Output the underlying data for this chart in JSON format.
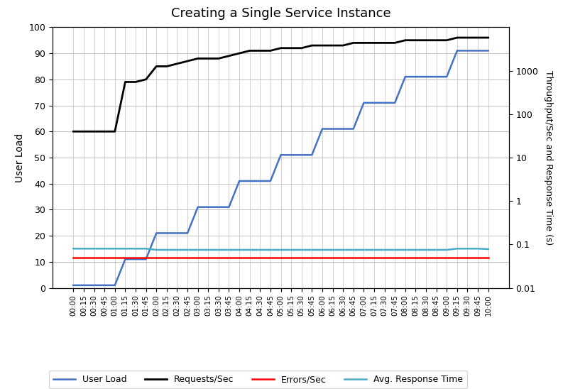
{
  "title": "Creating a Single Service Instance",
  "ylabel_left": "User Load",
  "ylabel_right": "Throughput/Sec and Response Time (s)",
  "ylim_left": [
    0,
    100
  ],
  "ylim_right": [
    0.01,
    10000
  ],
  "time_labels": [
    "00:00",
    "00:15",
    "00:30",
    "00:45",
    "01:00",
    "01:15",
    "01:30",
    "01:45",
    "02:00",
    "02:15",
    "02:30",
    "02:45",
    "03:00",
    "03:15",
    "03:30",
    "03:45",
    "04:00",
    "04:15",
    "04:30",
    "04:45",
    "05:00",
    "05:15",
    "05:30",
    "05:45",
    "06:00",
    "06:15",
    "06:30",
    "06:45",
    "07:00",
    "07:15",
    "07:30",
    "07:45",
    "08:00",
    "08:15",
    "08:30",
    "08:45",
    "09:00",
    "09:15",
    "09:30",
    "09:45",
    "10:00"
  ],
  "user_load": [
    1,
    1,
    1,
    1,
    1,
    11,
    11,
    11,
    21,
    21,
    21,
    21,
    31,
    31,
    31,
    31,
    41,
    41,
    41,
    41,
    51,
    51,
    51,
    51,
    61,
    61,
    61,
    61,
    71,
    71,
    71,
    71,
    81,
    81,
    81,
    81,
    81,
    91,
    91,
    91,
    91
  ],
  "requests_per_sec": [
    60,
    60,
    60,
    60,
    60,
    79,
    79,
    80,
    85,
    85,
    86,
    87,
    88,
    88,
    88,
    89,
    90,
    91,
    91,
    91,
    92,
    92,
    92,
    93,
    93,
    93,
    93,
    94,
    94,
    94,
    94,
    94,
    95,
    95,
    95,
    95,
    95,
    96,
    96,
    96,
    96
  ],
  "errors_per_sec": [
    0.05,
    0.05,
    0.05,
    0.05,
    0.05,
    0.05,
    0.05,
    0.05,
    0.05,
    0.05,
    0.05,
    0.05,
    0.05,
    0.05,
    0.05,
    0.05,
    0.05,
    0.05,
    0.05,
    0.05,
    0.05,
    0.05,
    0.05,
    0.05,
    0.05,
    0.05,
    0.05,
    0.05,
    0.05,
    0.05,
    0.05,
    0.05,
    0.05,
    0.05,
    0.05,
    0.05,
    0.05,
    0.05,
    0.05,
    0.05,
    0.05
  ],
  "avg_response_time": [
    0.08,
    0.08,
    0.08,
    0.08,
    0.08,
    0.08,
    0.08,
    0.08,
    0.075,
    0.075,
    0.075,
    0.075,
    0.075,
    0.075,
    0.075,
    0.075,
    0.075,
    0.075,
    0.075,
    0.075,
    0.075,
    0.075,
    0.075,
    0.075,
    0.075,
    0.075,
    0.075,
    0.075,
    0.075,
    0.075,
    0.075,
    0.075,
    0.075,
    0.075,
    0.075,
    0.075,
    0.075,
    0.08,
    0.08,
    0.08,
    0.078
  ],
  "user_load_color": "#4472C4",
  "requests_color": "#000000",
  "errors_color": "#FF0000",
  "response_color": "#4BACC6",
  "background_color": "#FFFFFF",
  "grid_color": "#C0C0C0",
  "legend_labels": [
    "User Load",
    "Requests/Sec",
    "Errors/Sec",
    "Avg. Response Time"
  ]
}
